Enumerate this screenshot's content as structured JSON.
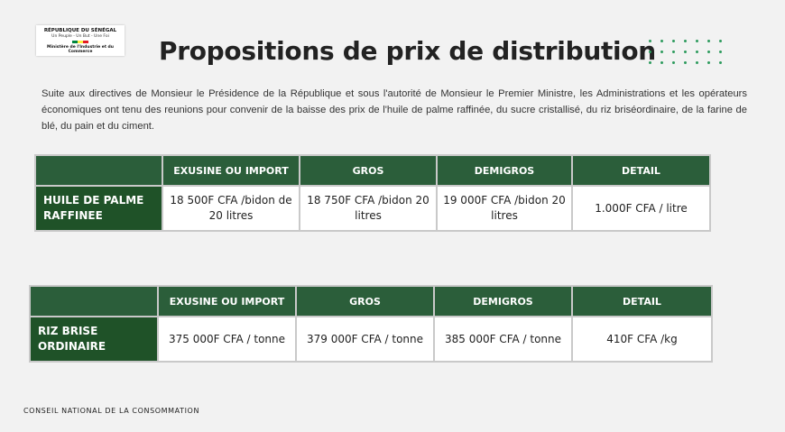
{
  "logo": {
    "line1": "RÉPUBLIQUE DU SÉNÉGAL",
    "line2": "Un Peuple - Un But - Une Foi",
    "line3": "Ministère de l'Industrie et du Commerce",
    "flag_colors": [
      "#00853f",
      "#fdef42",
      "#e31b23"
    ]
  },
  "title": "Propositions de prix de distribution",
  "intro": "Suite aux directives de Monsieur le Présidence de la République et sous l'autorité de Monsieur le Premier Ministre, les Administrations et les opérateurs économiques ont tenu des reunions pour convenir de la baisse des prix de l'huile de palme raffinée, du sucre cristallisé, du riz briséordinaire, de la farine de blé, du pain et du ciment.",
  "tables": [
    {
      "headers": [
        "",
        "EXUSINE OU IMPORT",
        "GROS",
        "DEMIGROS",
        "DETAIL"
      ],
      "product": "HUILE DE PALME RAFFINEE",
      "values": [
        "18 500F CFA /bidon de 20 litres",
        "18 750F CFA /bidon 20 litres",
        "19 000F CFA /bidon 20 litres",
        "1.000F CFA / litre"
      ]
    },
    {
      "headers": [
        "",
        "EXUSINE OU IMPORT",
        "GROS",
        "DEMIGROS",
        "DETAIL"
      ],
      "product": "RIZ BRISE ORDINAIRE",
      "values": [
        "375 000F CFA / tonne",
        "379 000F CFA / tonne",
        "385 000F CFA / tonne",
        "410F CFA /kg"
      ]
    }
  ],
  "footer": "CONSEIL NATIONAL DE LA CONSOMMATION",
  "colors": {
    "header_green": "#2b5e3a",
    "product_green": "#1f5228",
    "dot_green": "#2e9b5e"
  }
}
